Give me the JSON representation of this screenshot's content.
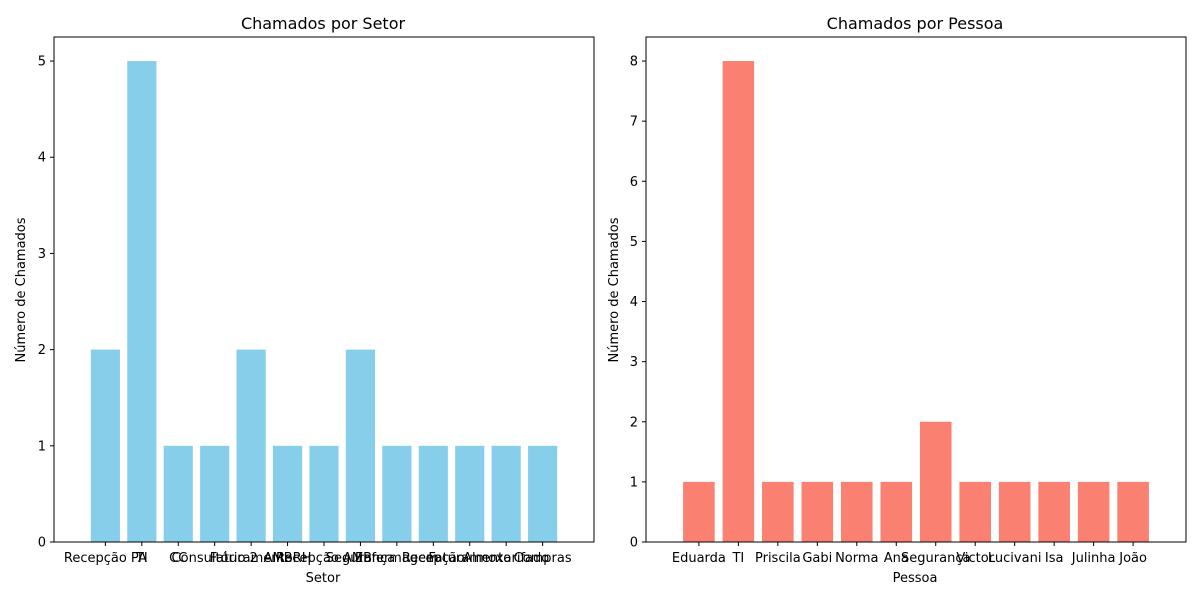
{
  "chart_data": [
    {
      "type": "bar",
      "title": "Chamados por Setor",
      "xlabel": "Setor",
      "ylabel": "Número de Chamados",
      "categories": [
        "Recepção PA",
        "TI",
        "CC",
        "Consultório 2",
        "Faturamento",
        "AMBRH",
        "Recepção AMB",
        "Segurança",
        "Enfermagem",
        "Recepção",
        "Faturamento",
        "Almoxarifado",
        "Compras"
      ],
      "values": [
        2,
        5,
        1,
        1,
        2,
        1,
        1,
        2,
        1,
        1,
        1,
        1,
        1
      ],
      "ylim": [
        0,
        5.25
      ],
      "yticks": [
        0,
        1,
        2,
        3,
        4,
        5
      ],
      "color": "#87ceeb"
    },
    {
      "type": "bar",
      "title": "Chamados por Pessoa",
      "xlabel": "Pessoa",
      "ylabel": "Número de Chamados",
      "categories": [
        "Eduarda",
        "TI",
        "Priscila",
        "Gabi",
        "Norma",
        "Ana",
        "Segurança",
        "Victor",
        "Lucivani",
        "Isa",
        "Julinha",
        "João"
      ],
      "values": [
        1,
        8,
        1,
        1,
        1,
        1,
        2,
        1,
        1,
        1,
        1,
        1
      ],
      "ylim": [
        0,
        8.4
      ],
      "yticks": [
        0,
        1,
        2,
        3,
        4,
        5,
        6,
        7,
        8
      ],
      "color": "#fa8072"
    }
  ]
}
